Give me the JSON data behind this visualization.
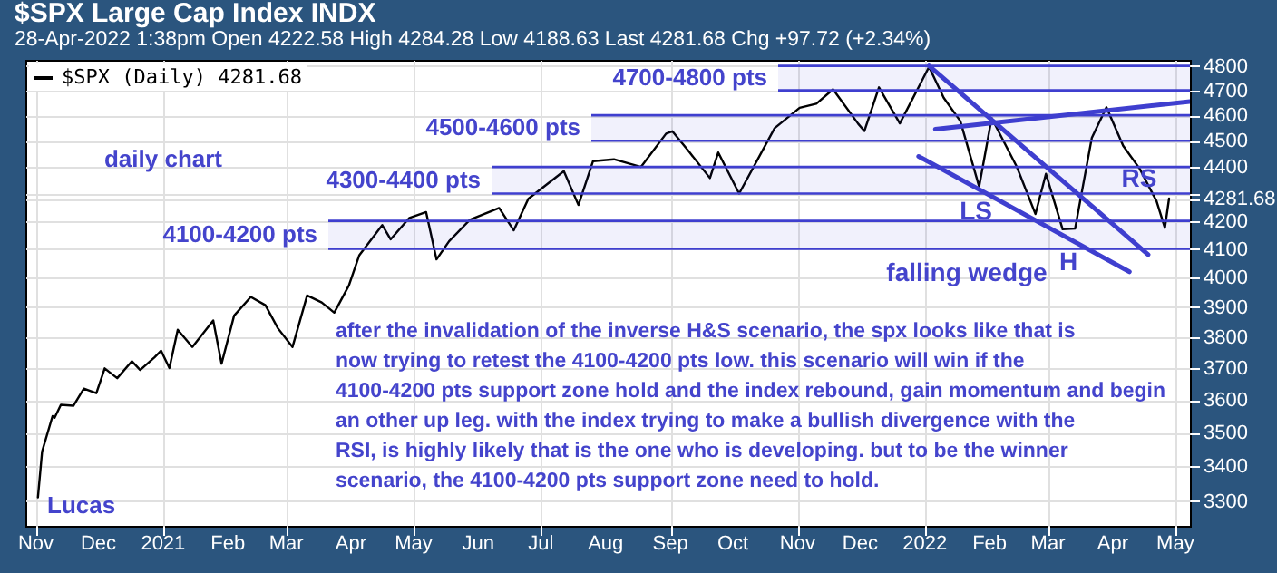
{
  "chart_data": {
    "type": "line",
    "title": "$SPX Large Cap Index INDX",
    "subtitle": "28-Apr-2022 1:38pm   Open 4222.58 High 4284.28 Low 4188.63 Last 4281.68 Chg +97.72 (+2.34%)",
    "log": "y",
    "grid": true,
    "legend": "top left",
    "xlim": [
      "2020-10-27",
      "2022-05-08"
    ],
    "xticks": [
      {
        "value": "2020-11-01",
        "label": "Nov"
      },
      {
        "value": "2020-12-01",
        "label": "Dec"
      },
      {
        "value": "2021-01-01",
        "label": "2021"
      },
      {
        "value": "2021-02-01",
        "label": "Feb"
      },
      {
        "value": "2021-03-01",
        "label": "Mar"
      },
      {
        "value": "2021-04-01",
        "label": "Apr"
      },
      {
        "value": "2021-05-01",
        "label": "May"
      },
      {
        "value": "2021-06-01",
        "label": "Jun"
      },
      {
        "value": "2021-07-01",
        "label": "Jul"
      },
      {
        "value": "2021-08-01",
        "label": "Aug"
      },
      {
        "value": "2021-09-01",
        "label": "Sep"
      },
      {
        "value": "2021-10-01",
        "label": "Oct"
      },
      {
        "value": "2021-11-01",
        "label": "Nov"
      },
      {
        "value": "2021-12-01",
        "label": "Dec"
      },
      {
        "value": "2022-01-01",
        "label": "2022"
      },
      {
        "value": "2022-02-01",
        "label": "Feb"
      },
      {
        "value": "2022-03-01",
        "label": "Mar"
      },
      {
        "value": "2022-04-01",
        "label": "Apr"
      },
      {
        "value": "2022-05-01",
        "label": "May"
      }
    ],
    "ylim": [
      3230,
      4825
    ],
    "yticks": [
      3300,
      3400,
      3500,
      3600,
      3700,
      3800,
      3900,
      4000,
      4100,
      4200,
      {
        "value": 4281.68,
        "label": "4281.68"
      },
      {
        "value": 4300,
        "label": null
      },
      4400,
      4500,
      4600,
      4700,
      4800
    ],
    "series": [
      {
        "name": "$SPX (Daily) 4281.68",
        "color": "#000000",
        "x": [
          "2020-11-02",
          "2020-11-04",
          "2020-11-09",
          "2020-11-10",
          "2020-11-13",
          "2020-11-19",
          "2020-11-24",
          "2020-11-30",
          "2020-12-04",
          "2020-12-10",
          "2020-12-17",
          "2020-12-21",
          "2020-12-28",
          "2020-12-31",
          "2021-01-04",
          "2021-01-08",
          "2021-01-15",
          "2021-01-25",
          "2021-01-29",
          "2021-02-04",
          "2021-02-12",
          "2021-02-19",
          "2021-02-25",
          "2021-03-04",
          "2021-03-11",
          "2021-03-18",
          "2021-03-24",
          "2021-03-31",
          "2021-04-05",
          "2021-04-16",
          "2021-04-20",
          "2021-04-29",
          "2021-05-07",
          "2021-05-12",
          "2021-05-18",
          "2021-05-28",
          "2021-06-11",
          "2021-06-18",
          "2021-06-25",
          "2021-07-12",
          "2021-07-19",
          "2021-07-26",
          "2021-08-05",
          "2021-08-18",
          "2021-08-30",
          "2021-09-02",
          "2021-09-10",
          "2021-09-20",
          "2021-09-24",
          "2021-10-04",
          "2021-10-21",
          "2021-11-02",
          "2021-11-10",
          "2021-11-18",
          "2021-11-30",
          "2021-12-03",
          "2021-12-10",
          "2021-12-20",
          "2022-01-03",
          "2022-01-10",
          "2022-01-18",
          "2022-01-27",
          "2022-02-02",
          "2022-02-14",
          "2022-02-23",
          "2022-02-28",
          "2022-03-08",
          "2022-03-14",
          "2022-03-22",
          "2022-03-29",
          "2022-04-06",
          "2022-04-14",
          "2022-04-22",
          "2022-04-26",
          "2022-04-28"
        ],
        "values": [
          3310,
          3443,
          3550,
          3545,
          3585,
          3582,
          3635,
          3621,
          3699,
          3668,
          3722,
          3694,
          3735,
          3756,
          3700,
          3824,
          3768,
          3855,
          3714,
          3871,
          3934,
          3906,
          3829,
          3768,
          3939,
          3915,
          3881,
          3973,
          4078,
          4185,
          4134,
          4211,
          4232,
          4063,
          4127,
          4204,
          4247,
          4166,
          4281,
          4384,
          4258,
          4422,
          4429,
          4400,
          4528,
          4537,
          4458,
          4358,
          4455,
          4300,
          4549,
          4630,
          4646,
          4704,
          4567,
          4538,
          4712,
          4568,
          4796,
          4670,
          4577,
          4326,
          4589,
          4401,
          4225,
          4374,
          4170,
          4173,
          4512,
          4632,
          4481,
          4392,
          4272,
          4175,
          4281.68
        ]
      },
      {
        "type": "line",
        "color": "#3f3fcf",
        "x": [
          "2022-01-03",
          "2022-04-18"
        ],
        "values": [
          4800,
          4080
        ]
      },
      {
        "type": "line",
        "color": "#3f3fcf",
        "x": [
          "2021-12-29",
          "2022-04-09"
        ],
        "values": [
          4440,
          4020
        ]
      },
      {
        "type": "line",
        "color": "#3f3fcf",
        "x": [
          "2022-01-06",
          "2022-05-08"
        ],
        "values": [
          4545,
          4655
        ]
      }
    ],
    "bands": [
      {
        "axis": "y",
        "from": 4100,
        "to": 4200,
        "label": "4100-4200 pts",
        "color": "#3f3fcf"
      },
      {
        "axis": "y",
        "from": 4300,
        "to": 4400,
        "label": "4300-4400 pts",
        "color": "#3f3fcf"
      },
      {
        "axis": "y",
        "from": 4500,
        "to": 4600,
        "label": "4500-4600 pts",
        "color": "#3f3fcf"
      },
      {
        "axis": "y",
        "from": 4700,
        "to": 4800,
        "label": "4700-4800 pts",
        "color": "#3f3fcf"
      }
    ],
    "annotations": [
      "daily chart",
      "after the invalidation of the inverse H&S scenario, the spx looks like that is now trying to retest the 4100-4200 pts low. this scenario will win if the 4100-4200 pts support zone hold and the index rebound, gain momentum and begin an other up leg. with the index trying to make a bullish divergence with the RSI, is highly likely that is the one who is developing. but to be the winner scenario, the 4100-4200 pts support zone need to hold.",
      "Lucas",
      "LS",
      "H",
      "RS",
      "falling wedge"
    ]
  }
}
